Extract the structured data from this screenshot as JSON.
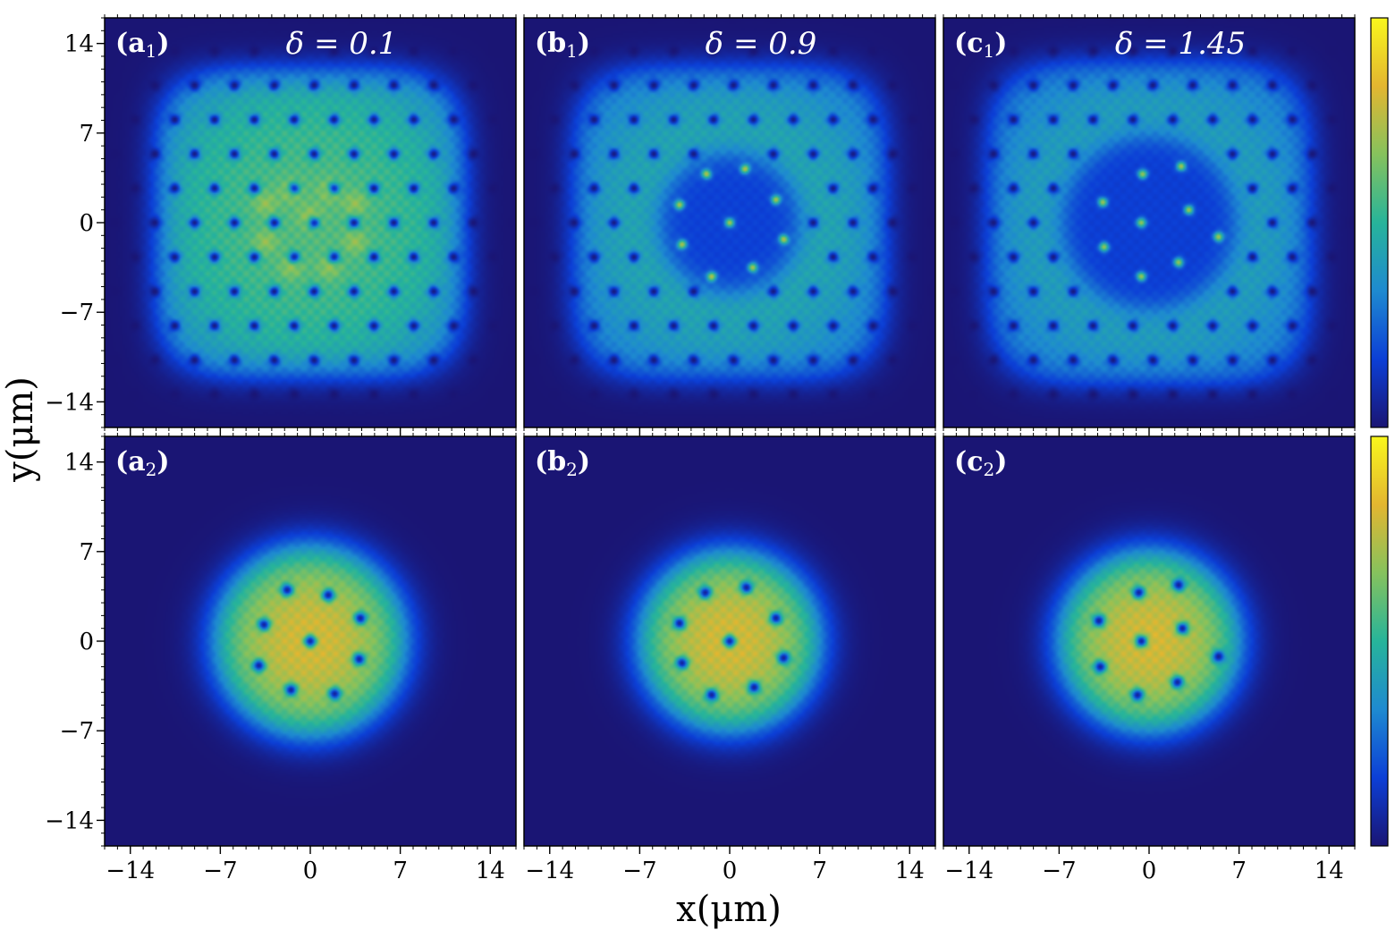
{
  "chart_data": {
    "type": "heatmap",
    "xlabel": "x(μm)",
    "ylabel": "y(μm)",
    "xlim": [
      -16,
      16
    ],
    "ylim": [
      -16,
      16
    ],
    "xticks": [
      -14,
      -7,
      0,
      7,
      14
    ],
    "yticks": [
      -14,
      -7,
      0,
      7,
      14
    ],
    "xtick_labels": [
      "−14",
      "−7",
      "0",
      "7",
      "14"
    ],
    "ytick_labels": [
      "−14",
      "−7",
      "0",
      "7",
      "14"
    ],
    "colormap": [
      "#1a1574",
      "#0c3fd6",
      "#1e8ad0",
      "#27b49a",
      "#86c25d",
      "#e3b630",
      "#f9f71c"
    ],
    "colorbar_ticks": "none",
    "panels": [
      {
        "id": "a1",
        "label": "(a",
        "sub": "1",
        "delta": "δ = 0.1",
        "row": 0,
        "col": 0,
        "halfwidth": 12.0,
        "squareness": 4.5,
        "peak": 0.62,
        "hole_rings": 8,
        "center_holes": 0,
        "bright_core": [
          [
            -1.5,
            2.5
          ],
          [
            1.5,
            2.5
          ],
          [
            -3.5,
            1.5
          ],
          [
            3.5,
            1.5
          ],
          [
            0,
            0.5
          ],
          [
            -3.5,
            -1.5
          ],
          [
            3.5,
            -1.5
          ],
          [
            -1.5,
            -3.5
          ],
          [
            1.5,
            -3.5
          ]
        ]
      },
      {
        "id": "b1",
        "label": "(b",
        "sub": "1",
        "delta": "δ = 0.9",
        "row": 0,
        "col": 1,
        "halfwidth": 12.2,
        "squareness": 4.5,
        "peak": 0.52,
        "hole_rings": 8,
        "center_holes": 0,
        "dark_center_radius": 5.5,
        "core_vortices": [
          [
            -1.8,
            3.8
          ],
          [
            1.2,
            4.2
          ],
          [
            -3.9,
            1.4
          ],
          [
            3.6,
            1.8
          ],
          [
            0,
            0
          ],
          [
            -3.7,
            -1.7
          ],
          [
            4.2,
            -1.3
          ],
          [
            -1.4,
            -4.2
          ],
          [
            1.8,
            -3.5
          ]
        ]
      },
      {
        "id": "c1",
        "label": "(c",
        "sub": "1",
        "delta": "δ = 1.45",
        "row": 0,
        "col": 2,
        "halfwidth": 12.6,
        "squareness": 4.5,
        "peak": 0.5,
        "hole_rings": 8,
        "center_holes": 0,
        "dark_center_radius": 6.8,
        "core_vortices": [
          [
            -0.5,
            3.8
          ],
          [
            2.5,
            4.4
          ],
          [
            -3.6,
            1.6
          ],
          [
            3.1,
            1.0
          ],
          [
            -0.6,
            0
          ],
          [
            5.4,
            -1.1
          ],
          [
            -3.5,
            -1.9
          ],
          [
            2.3,
            -3.1
          ],
          [
            -0.6,
            -4.2
          ]
        ]
      },
      {
        "id": "a2",
        "label": "(a",
        "sub": "2",
        "delta": "",
        "row": 1,
        "col": 0,
        "radius": 8.0,
        "peak": 0.85,
        "vortices": [
          [
            -1.8,
            4.0
          ],
          [
            1.4,
            3.6
          ],
          [
            -3.6,
            1.3
          ],
          [
            3.9,
            1.8
          ],
          [
            0,
            0
          ],
          [
            -4.0,
            -1.9
          ],
          [
            3.8,
            -1.4
          ],
          [
            -1.5,
            -3.8
          ],
          [
            1.9,
            -4.1
          ]
        ]
      },
      {
        "id": "b2",
        "label": "(b",
        "sub": "2",
        "delta": "",
        "row": 1,
        "col": 1,
        "radius": 7.6,
        "peak": 0.85,
        "vortices": [
          [
            -1.9,
            3.8
          ],
          [
            1.3,
            4.2
          ],
          [
            -3.9,
            1.4
          ],
          [
            3.6,
            1.8
          ],
          [
            0,
            0
          ],
          [
            -3.7,
            -1.7
          ],
          [
            4.2,
            -1.3
          ],
          [
            -1.4,
            -4.2
          ],
          [
            1.9,
            -3.6
          ]
        ]
      },
      {
        "id": "c2",
        "label": "(c",
        "sub": "2",
        "delta": "",
        "row": 1,
        "col": 2,
        "radius": 7.6,
        "peak": 0.85,
        "vortices": [
          [
            -0.8,
            3.8
          ],
          [
            2.3,
            4.4
          ],
          [
            -3.9,
            1.6
          ],
          [
            2.6,
            1.0
          ],
          [
            -0.6,
            0
          ],
          [
            5.4,
            -1.2
          ],
          [
            -3.8,
            -2.0
          ],
          [
            2.2,
            -3.2
          ],
          [
            -0.9,
            -4.2
          ]
        ]
      }
    ]
  }
}
